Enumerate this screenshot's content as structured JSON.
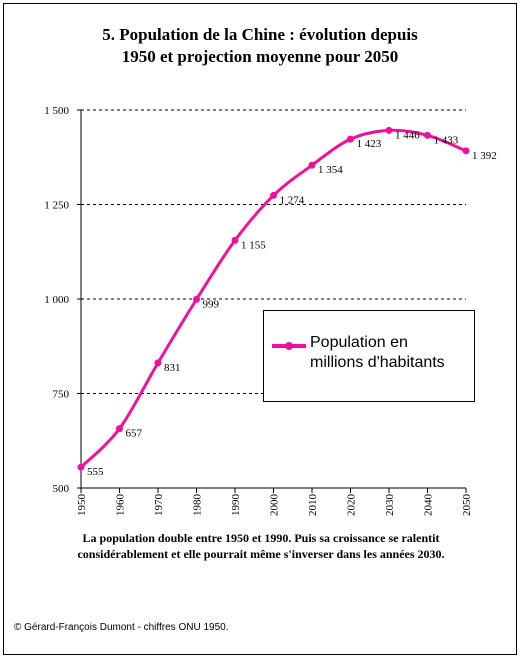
{
  "title": {
    "line1": "5. Population de la Chine : évolution depuis",
    "line2": "1950 et projection moyenne pour 2050"
  },
  "caption": {
    "line1": "La population double entre 1950 et 1990. Puis sa croissance se ralentit",
    "line2": "considérablement et elle pourrait même s'inverser dans les années 2030."
  },
  "credit": "© Gérard-François Dumont - chiffres ONU 1950.",
  "legend": {
    "line1": "Population en",
    "line2": "millions d'habitants"
  },
  "colors": {
    "series": "#ee1199",
    "grid": "#000000"
  },
  "chart_data": {
    "type": "line",
    "x": [
      1950,
      1960,
      1970,
      1980,
      1990,
      2000,
      2010,
      2020,
      2030,
      2040,
      2050
    ],
    "series": [
      {
        "name": "Population en millions d'habitants",
        "values": [
          555,
          657,
          831,
          999,
          1155,
          1274,
          1354,
          1423,
          1446,
          1433,
          1392
        ],
        "labels": [
          "555",
          "657",
          "831",
          "999",
          "1 155",
          "1 274",
          "1 354",
          "1 423",
          "1 446",
          "1 433",
          "1 392"
        ]
      }
    ],
    "ylim": [
      500,
      1500
    ],
    "yticks": [
      500,
      750,
      1000,
      1250,
      1500
    ],
    "ytick_labels": [
      "500",
      "750",
      "1 000",
      "1 250",
      "1 500"
    ],
    "xticks": [
      1950,
      1960,
      1970,
      1980,
      1990,
      2000,
      2010,
      2020,
      2030,
      2040,
      2050
    ],
    "xtick_labels": [
      "1950",
      "1960",
      "1970",
      "1980",
      "1990",
      "2000",
      "2010",
      "2020",
      "2030",
      "2040",
      "2050"
    ],
    "grid": "horizontal dashed",
    "legend_position": "right-middle"
  }
}
